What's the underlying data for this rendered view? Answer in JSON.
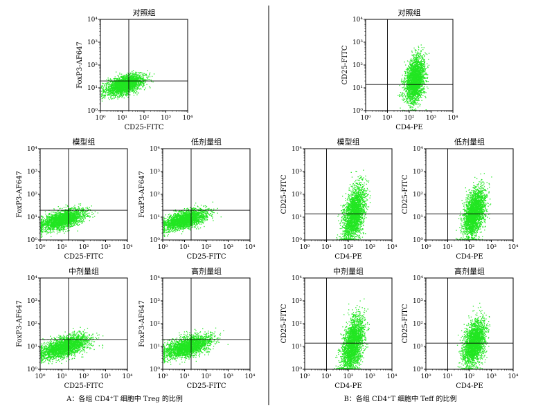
{
  "colors": {
    "dots": "#22e622",
    "axis": "#000000",
    "gate": "#000000",
    "divider": "#000000"
  },
  "captions": {
    "A": "A：各组 CD4⁺T 细胞中 Treg 的比例",
    "B": "B：各组 CD4⁺T 细胞中 Teff 的比例"
  },
  "chart_data": [
    {
      "panel_id": "A-ctrl",
      "type": "scatter",
      "title": "对照组",
      "xlabel": "CD25-FITC",
      "ylabel": "FoxP3-AF647",
      "scale": "log",
      "xlim": [
        1,
        10000
      ],
      "ylim": [
        1,
        10000
      ],
      "tick_labels": [
        "10⁰",
        "10¹",
        "10²",
        "10³",
        "10⁴"
      ],
      "quadrant_gate": {
        "x": 20,
        "y": 20
      },
      "density": {
        "center_x_log": 1.1,
        "center_y_log": 1.15,
        "spread_x_log": 0.42,
        "spread_y_log": 0.22,
        "correlation": 0.5,
        "max_x_log": 2.7,
        "max_y_log": 1.8
      }
    },
    {
      "panel_id": "A-model",
      "type": "scatter",
      "title": "模型组",
      "xlabel": "CD25-FITC",
      "ylabel": "FoxP3-AF647",
      "scale": "log",
      "xlim": [
        1,
        10000
      ],
      "ylim": [
        1,
        10000
      ],
      "tick_labels": [
        "10⁰",
        "10¹",
        "10²",
        "10³",
        "10⁴"
      ],
      "quadrant_gate": {
        "x": 20,
        "y": 20
      },
      "density": {
        "center_x_log": 1.0,
        "center_y_log": 0.9,
        "spread_x_log": 0.5,
        "spread_y_log": 0.22,
        "correlation": 0.55,
        "max_x_log": 3.1,
        "max_y_log": 1.7
      }
    },
    {
      "panel_id": "A-low",
      "type": "scatter",
      "title": "低剂量组",
      "xlabel": "CD25-FITC",
      "ylabel": "FoxP3-AF647",
      "scale": "log",
      "xlim": [
        1,
        10000
      ],
      "ylim": [
        1,
        10000
      ],
      "tick_labels": [
        "10⁰",
        "10¹",
        "10²",
        "10³",
        "10⁴"
      ],
      "quadrant_gate": {
        "x": 20,
        "y": 20
      },
      "density": {
        "center_x_log": 1.0,
        "center_y_log": 0.9,
        "spread_x_log": 0.5,
        "spread_y_log": 0.22,
        "correlation": 0.55,
        "max_x_log": 3.1,
        "max_y_log": 1.8
      }
    },
    {
      "panel_id": "A-mid",
      "type": "scatter",
      "title": "中剂量组",
      "xlabel": "CD25-FITC",
      "ylabel": "FoxP3-AF647",
      "scale": "log",
      "xlim": [
        1,
        10000
      ],
      "ylim": [
        1,
        10000
      ],
      "tick_labels": [
        "10⁰",
        "10¹",
        "10²",
        "10³",
        "10⁴"
      ],
      "quadrant_gate": {
        "x": 20,
        "y": 20
      },
      "density": {
        "center_x_log": 1.1,
        "center_y_log": 1.0,
        "spread_x_log": 0.55,
        "spread_y_log": 0.25,
        "correlation": 0.55,
        "max_x_log": 3.1,
        "max_y_log": 1.9
      }
    },
    {
      "panel_id": "A-high",
      "type": "scatter",
      "title": "高剂量组",
      "xlabel": "CD25-FITC",
      "ylabel": "FoxP3-AF647",
      "scale": "log",
      "xlim": [
        1,
        10000
      ],
      "ylim": [
        1,
        10000
      ],
      "tick_labels": [
        "10⁰",
        "10¹",
        "10²",
        "10³",
        "10⁴"
      ],
      "quadrant_gate": {
        "x": 20,
        "y": 20
      },
      "density": {
        "center_x_log": 1.1,
        "center_y_log": 1.0,
        "spread_x_log": 0.55,
        "spread_y_log": 0.25,
        "correlation": 0.55,
        "max_x_log": 3.1,
        "max_y_log": 1.9
      }
    },
    {
      "panel_id": "B-ctrl",
      "type": "scatter",
      "title": "对照组",
      "xlabel": "CD4-PE",
      "ylabel": "CD25-FITC",
      "scale": "log",
      "xlim": [
        1,
        10000
      ],
      "ylim": [
        1,
        10000
      ],
      "tick_labels": [
        "10⁰",
        "10¹",
        "10²",
        "10³",
        "10⁴"
      ],
      "quadrant_gate": {
        "x": 10,
        "y": 14
      },
      "density": {
        "center_x_log": 2.25,
        "center_y_log": 1.35,
        "spread_x_log": 0.22,
        "spread_y_log": 0.5,
        "correlation": 0.3,
        "max_x_log": 2.9,
        "max_y_log": 3.0
      }
    },
    {
      "panel_id": "B-model",
      "type": "scatter",
      "title": "模型组",
      "xlabel": "CD4-PE",
      "ylabel": "CD25-FITC",
      "scale": "log",
      "xlim": [
        1,
        10000
      ],
      "ylim": [
        1,
        10000
      ],
      "tick_labels": [
        "10⁰",
        "10¹",
        "10²",
        "10³",
        "10⁴"
      ],
      "quadrant_gate": {
        "x": 10,
        "y": 14
      },
      "density": {
        "center_x_log": 2.25,
        "center_y_log": 1.15,
        "spread_x_log": 0.25,
        "spread_y_log": 0.6,
        "correlation": 0.45,
        "max_x_log": 3.0,
        "max_y_log": 3.3
      }
    },
    {
      "panel_id": "B-low",
      "type": "scatter",
      "title": "低剂量组",
      "xlabel": "CD4-PE",
      "ylabel": "CD25-FITC",
      "scale": "log",
      "xlim": [
        1,
        10000
      ],
      "ylim": [
        1,
        10000
      ],
      "tick_labels": [
        "10⁰",
        "10¹",
        "10²",
        "10³",
        "10⁴"
      ],
      "quadrant_gate": {
        "x": 10,
        "y": 14
      },
      "density": {
        "center_x_log": 2.2,
        "center_y_log": 1.2,
        "spread_x_log": 0.25,
        "spread_y_log": 0.55,
        "correlation": 0.45,
        "max_x_log": 3.0,
        "max_y_log": 3.1
      }
    },
    {
      "panel_id": "B-mid",
      "type": "scatter",
      "title": "中剂量组",
      "xlabel": "CD4-PE",
      "ylabel": "CD25-FITC",
      "scale": "log",
      "xlim": [
        1,
        10000
      ],
      "ylim": [
        1,
        10000
      ],
      "tick_labels": [
        "10⁰",
        "10¹",
        "10²",
        "10³",
        "10⁴"
      ],
      "quadrant_gate": {
        "x": 10,
        "y": 14
      },
      "density": {
        "center_x_log": 2.2,
        "center_y_log": 1.1,
        "spread_x_log": 0.25,
        "spread_y_log": 0.6,
        "correlation": 0.45,
        "max_x_log": 3.0,
        "max_y_log": 3.3
      }
    },
    {
      "panel_id": "B-high",
      "type": "scatter",
      "title": "高剂量组",
      "xlabel": "CD4-PE",
      "ylabel": "CD25-FITC",
      "scale": "log",
      "xlim": [
        1,
        10000
      ],
      "ylim": [
        1,
        10000
      ],
      "tick_labels": [
        "10⁰",
        "10¹",
        "10²",
        "10³",
        "10⁴"
      ],
      "quadrant_gate": {
        "x": 10,
        "y": 14
      },
      "density": {
        "center_x_log": 2.2,
        "center_y_log": 1.15,
        "spread_x_log": 0.25,
        "spread_y_log": 0.5,
        "correlation": 0.4,
        "max_x_log": 3.0,
        "max_y_log": 3.0
      }
    }
  ]
}
